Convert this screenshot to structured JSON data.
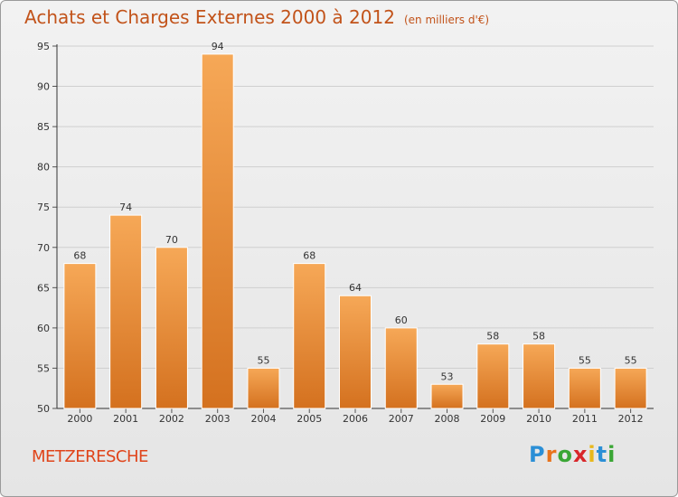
{
  "title": "Achats et Charges Externes 2000 à 2012",
  "unit_note": "(en milliers d'€)",
  "commune": "METZERESCHE",
  "brand": {
    "text": "Proxiti",
    "letter_colors": [
      "#2b8fd6",
      "#e8731c",
      "#3aa635",
      "#d8262a",
      "#e8b81c",
      "#2b8fd6",
      "#3aa635"
    ]
  },
  "colors": {
    "bar_top": "#f6a857",
    "bar_bottom": "#d4711f",
    "title": "#c2531a",
    "commune": "#e0441a"
  },
  "chart_data": {
    "type": "bar",
    "categories": [
      "2000",
      "2001",
      "2002",
      "2003",
      "2004",
      "2005",
      "2006",
      "2007",
      "2008",
      "2009",
      "2010",
      "2011",
      "2012"
    ],
    "values": [
      68,
      74,
      70,
      94,
      55,
      68,
      64,
      60,
      53,
      58,
      58,
      55,
      55
    ],
    "ylim": [
      50,
      95
    ],
    "yticks": [
      50,
      55,
      60,
      65,
      70,
      75,
      80,
      85,
      90,
      95
    ],
    "grid": true,
    "data_labels": true
  }
}
